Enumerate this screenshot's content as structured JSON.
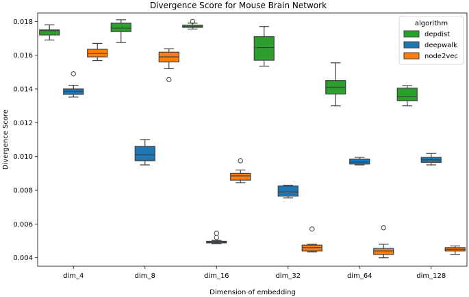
{
  "chart_data": {
    "type": "boxplot",
    "title": "Divergence Score for Mouse Brain Network",
    "xlabel": "Dimension of embedding",
    "ylabel": "Divergence Score",
    "ylim": [
      0.0035,
      0.0185
    ],
    "yticks": [
      "0.004",
      "0.006",
      "0.008",
      "0.010",
      "0.012",
      "0.014",
      "0.016",
      "0.018"
    ],
    "ytick_values": [
      0.004,
      0.006,
      0.008,
      0.01,
      0.012,
      0.014,
      0.016,
      0.018
    ],
    "categories": [
      "dim_4",
      "dim_8",
      "dim_16",
      "dim_32",
      "dim_64",
      "dim_128"
    ],
    "legend": {
      "title": "algorithm",
      "position": "top-right"
    },
    "series": [
      {
        "name": "depdist",
        "color": "#2ca02c",
        "boxes": [
          {
            "whislo": 0.0169,
            "q1": 0.0172,
            "med": 0.01745,
            "q3": 0.0175,
            "whishi": 0.0178,
            "fliers": []
          },
          {
            "whislo": 0.01675,
            "q1": 0.0174,
            "med": 0.0176,
            "q3": 0.0179,
            "whishi": 0.0181,
            "fliers": []
          },
          {
            "whislo": 0.01755,
            "q1": 0.01765,
            "med": 0.0177,
            "q3": 0.01778,
            "whishi": 0.0179,
            "fliers": [
              0.018
            ]
          },
          {
            "whislo": 0.01535,
            "q1": 0.0157,
            "med": 0.01645,
            "q3": 0.0171,
            "whishi": 0.0177,
            "fliers": []
          },
          {
            "whislo": 0.013,
            "q1": 0.0137,
            "med": 0.0141,
            "q3": 0.0145,
            "whishi": 0.01555,
            "fliers": []
          },
          {
            "whislo": 0.013,
            "q1": 0.0133,
            "med": 0.01355,
            "q3": 0.01405,
            "whishi": 0.0142,
            "fliers": []
          }
        ]
      },
      {
        "name": "deepwalk",
        "color": "#1f77b4",
        "boxes": [
          {
            "whislo": 0.01352,
            "q1": 0.01368,
            "med": 0.01385,
            "q3": 0.014,
            "whishi": 0.01422,
            "fliers": [
              0.0149
            ]
          },
          {
            "whislo": 0.0095,
            "q1": 0.00975,
            "med": 0.0101,
            "q3": 0.0106,
            "whishi": 0.011,
            "fliers": []
          },
          {
            "whislo": 0.00483,
            "q1": 0.00488,
            "med": 0.00492,
            "q3": 0.00498,
            "whishi": 0.00503,
            "fliers": [
              0.0052,
              0.00545
            ]
          },
          {
            "whislo": 0.00755,
            "q1": 0.00765,
            "med": 0.0079,
            "q3": 0.00825,
            "whishi": 0.0083,
            "fliers": []
          },
          {
            "whislo": 0.0095,
            "q1": 0.00955,
            "med": 0.00967,
            "q3": 0.00985,
            "whishi": 0.00995,
            "fliers": []
          },
          {
            "whislo": 0.0095,
            "q1": 0.00965,
            "med": 0.0098,
            "q3": 0.00995,
            "whishi": 0.01018,
            "fliers": []
          }
        ]
      },
      {
        "name": "node2vec",
        "color": "#ff7f0e",
        "boxes": [
          {
            "whislo": 0.01568,
            "q1": 0.0159,
            "med": 0.0161,
            "q3": 0.01635,
            "whishi": 0.0167,
            "fliers": []
          },
          {
            "whislo": 0.0152,
            "q1": 0.0156,
            "med": 0.0159,
            "q3": 0.01618,
            "whishi": 0.01638,
            "fliers": [
              0.01455
            ]
          },
          {
            "whislo": 0.00845,
            "q1": 0.0086,
            "med": 0.00885,
            "q3": 0.009,
            "whishi": 0.0092,
            "fliers": [
              0.00975
            ]
          },
          {
            "whislo": 0.00435,
            "q1": 0.0044,
            "med": 0.0046,
            "q3": 0.00475,
            "whishi": 0.0048,
            "fliers": [
              0.0057
            ]
          },
          {
            "whislo": 0.004,
            "q1": 0.0042,
            "med": 0.0044,
            "q3": 0.00455,
            "whishi": 0.0048,
            "fliers": [
              0.00578
            ]
          },
          {
            "whislo": 0.0042,
            "q1": 0.0044,
            "med": 0.0045,
            "q3": 0.0046,
            "whishi": 0.0047,
            "fliers": []
          }
        ]
      }
    ]
  }
}
